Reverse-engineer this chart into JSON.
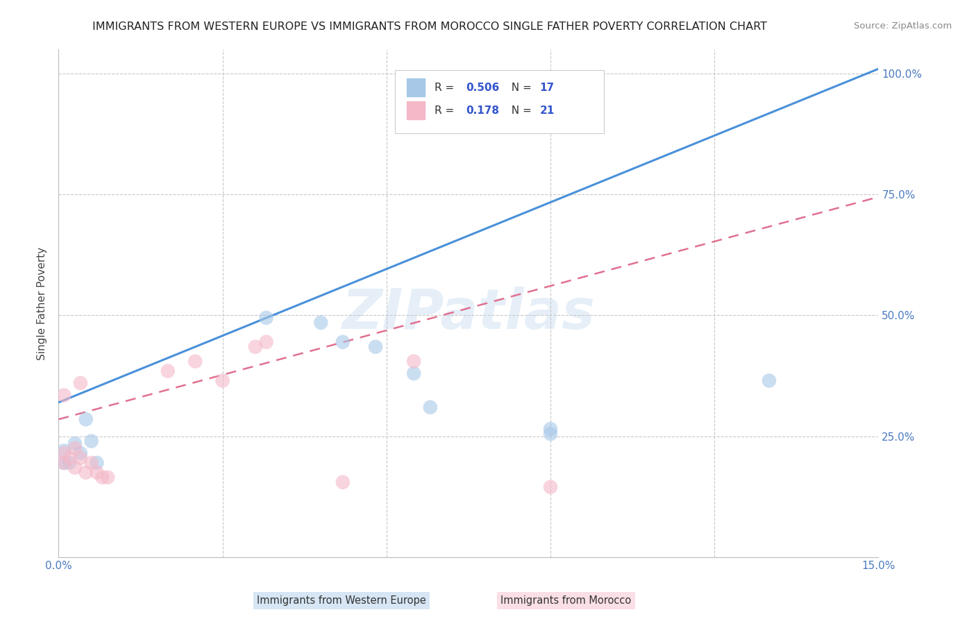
{
  "title": "IMMIGRANTS FROM WESTERN EUROPE VS IMMIGRANTS FROM MOROCCO SINGLE FATHER POVERTY CORRELATION CHART",
  "source": "Source: ZipAtlas.com",
  "ylabel": "Single Father Poverty",
  "legend_label1": "Immigrants from Western Europe",
  "legend_label2": "Immigrants from Morocco",
  "R1": "0.506",
  "N1": "17",
  "R2": "0.178",
  "N2": "21",
  "xlim": [
    0.0,
    0.15
  ],
  "ylim": [
    0.0,
    1.05
  ],
  "x_ticks": [
    0.0,
    0.03,
    0.06,
    0.09,
    0.12,
    0.15
  ],
  "x_tick_labels": [
    "0.0%",
    "",
    "",
    "",
    "",
    "15.0%"
  ],
  "y_ticks": [
    0.25,
    0.5,
    0.75,
    1.0
  ],
  "y_tick_labels": [
    "25.0%",
    "50.0%",
    "75.0%",
    "100.0%"
  ],
  "blue_scatter_x": [
    0.001,
    0.001,
    0.002,
    0.003,
    0.004,
    0.005,
    0.006,
    0.007,
    0.038,
    0.048,
    0.052,
    0.058,
    0.065,
    0.068,
    0.09,
    0.09,
    0.13
  ],
  "blue_scatter_y": [
    0.195,
    0.22,
    0.195,
    0.235,
    0.215,
    0.285,
    0.24,
    0.195,
    0.495,
    0.485,
    0.445,
    0.435,
    0.38,
    0.31,
    0.265,
    0.255,
    0.365
  ],
  "pink_scatter_x": [
    0.001,
    0.001,
    0.001,
    0.002,
    0.003,
    0.003,
    0.004,
    0.004,
    0.005,
    0.006,
    0.007,
    0.008,
    0.009,
    0.02,
    0.025,
    0.03,
    0.036,
    0.038,
    0.052,
    0.065,
    0.09
  ],
  "pink_scatter_y": [
    0.195,
    0.215,
    0.335,
    0.205,
    0.185,
    0.225,
    0.205,
    0.36,
    0.175,
    0.195,
    0.175,
    0.165,
    0.165,
    0.385,
    0.405,
    0.365,
    0.435,
    0.445,
    0.155,
    0.405,
    0.145
  ],
  "blue_line_x": [
    0.0,
    0.15
  ],
  "blue_line_y": [
    0.32,
    1.01
  ],
  "pink_line_x": [
    0.0,
    0.15
  ],
  "pink_line_y": [
    0.285,
    0.745
  ],
  "blue_color": "#a8c8e8",
  "pink_color": "#f4b8c8",
  "blue_line_color": "#4a90d9",
  "pink_line_color": "#e07090",
  "watermark_text": "ZIPatlas",
  "background_color": "#ffffff",
  "grid_color": "#c8c8c8",
  "tick_color": "#4a7abf",
  "title_color": "#222222",
  "source_color": "#888888"
}
